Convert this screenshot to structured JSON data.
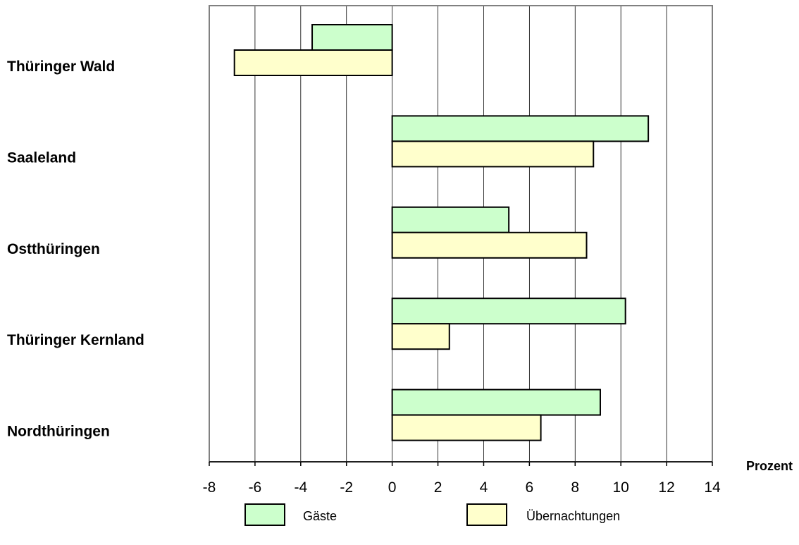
{
  "chart_data": {
    "type": "bar",
    "orientation": "horizontal",
    "categories": [
      "Thüringer Wald",
      "Saaleland",
      "Ostthüringen",
      "Thüringer Kernland",
      "Nordthüringen"
    ],
    "series": [
      {
        "name": "Gäste",
        "color": "#ccffcc",
        "values": [
          -3.5,
          11.2,
          5.1,
          10.2,
          9.1
        ]
      },
      {
        "name": "Übernachtungen",
        "color": "#ffffcc",
        "values": [
          -6.9,
          8.8,
          8.5,
          2.5,
          6.5
        ]
      }
    ],
    "xlim": [
      -8,
      14
    ],
    "xticks": [
      "-8",
      "-6",
      "-4",
      "-2",
      "0",
      "2",
      "4",
      "6",
      "8",
      "10",
      "12",
      "14"
    ],
    "xlabel": "Prozent",
    "grid": "vertical",
    "legend": "bottom"
  }
}
